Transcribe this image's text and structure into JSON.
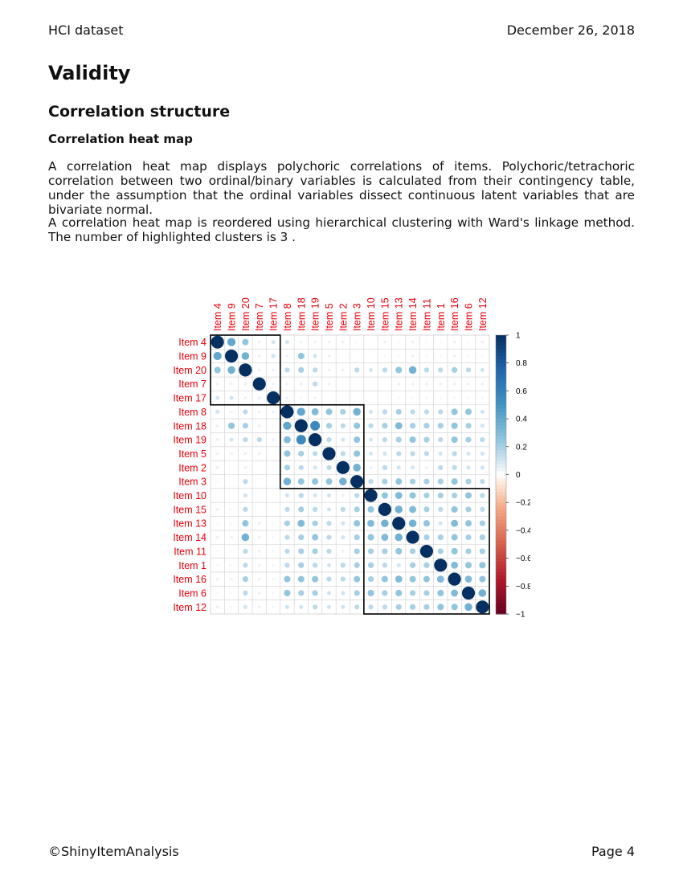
{
  "header": {
    "left": "HCI dataset",
    "right": "December 26, 2018"
  },
  "section": {
    "title": "Validity"
  },
  "subsection": {
    "title": "Correlation structure"
  },
  "subsubsection": {
    "title": "Correlation heat map"
  },
  "paragraphs": [
    "A correlation heat map displays polychoric correlations of items. Polychoric/tetrachoric correlation between two ordinal/binary variables is calculated from their contingency table, under the assumption that the ordinal variables dissect continuous latent variables that are bivariate normal.",
    "A correlation heat map is reordered using hierarchical clustering with Ward's linkage method. The number of highlighted clusters is 3 ."
  ],
  "footer": {
    "left": "©ShinyItemAnalysis",
    "right": "Page 4"
  },
  "chart_data": {
    "type": "heatmap",
    "items": [
      "Item 4",
      "Item 9",
      "Item 20",
      "Item 7",
      "Item 17",
      "Item 8",
      "Item 18",
      "Item 19",
      "Item 5",
      "Item 2",
      "Item 3",
      "Item 10",
      "Item 15",
      "Item 13",
      "Item 14",
      "Item 11",
      "Item 1",
      "Item 16",
      "Item 6",
      "Item 12"
    ],
    "clusters": [
      [
        1,
        5
      ],
      [
        6,
        11
      ],
      [
        12,
        20
      ]
    ],
    "colorbar_ticks": [
      "1",
      "0.8",
      "0.6",
      "0.4",
      "0.2",
      "0",
      "−0.2",
      "−0.4",
      "−0.6",
      "−0.8",
      "−1"
    ],
    "colorbar_range": [
      -1,
      1
    ],
    "label_color": "#e8000b",
    "matrix": [
      [
        1.0,
        0.4,
        0.25,
        0.05,
        0.1,
        0.1,
        0.05,
        0.05,
        0.05,
        0.05,
        0.03,
        0.0,
        0.05,
        0.03,
        0.05,
        0.03,
        0.03,
        0.05,
        0.03,
        0.05
      ],
      [
        0.4,
        1.0,
        0.35,
        0.05,
        0.1,
        0.05,
        0.25,
        0.1,
        0.05,
        0.0,
        0.0,
        0.0,
        0.03,
        0.03,
        0.05,
        0.03,
        0.03,
        0.05,
        0.03,
        0.03
      ],
      [
        0.25,
        0.35,
        1.0,
        0.05,
        0.05,
        0.15,
        0.2,
        0.15,
        0.05,
        0.05,
        0.15,
        0.1,
        0.15,
        0.25,
        0.35,
        0.15,
        0.15,
        0.2,
        0.15,
        0.1
      ],
      [
        0.05,
        0.05,
        0.05,
        1.0,
        0.05,
        0.05,
        0.05,
        0.15,
        0.05,
        0.0,
        0.0,
        0.0,
        0.0,
        0.05,
        0.05,
        0.05,
        0.05,
        0.05,
        0.05,
        0.05
      ],
      [
        0.1,
        0.1,
        0.05,
        0.05,
        1.0,
        0.05,
        0.03,
        0.05,
        0.0,
        0.0,
        0.0,
        0.0,
        0.0,
        0.03,
        0.03,
        0.03,
        0.03,
        0.03,
        0.03,
        0.03
      ],
      [
        0.1,
        0.05,
        0.15,
        0.05,
        0.05,
        1.0,
        0.4,
        0.3,
        0.25,
        0.2,
        0.35,
        0.1,
        0.15,
        0.2,
        0.15,
        0.15,
        0.15,
        0.25,
        0.25,
        0.1
      ],
      [
        0.05,
        0.25,
        0.2,
        0.05,
        0.03,
        0.4,
        1.0,
        0.55,
        0.2,
        0.15,
        0.25,
        0.15,
        0.2,
        0.3,
        0.2,
        0.2,
        0.2,
        0.25,
        0.2,
        0.1
      ],
      [
        0.05,
        0.1,
        0.15,
        0.15,
        0.05,
        0.3,
        0.55,
        1.0,
        0.15,
        0.1,
        0.25,
        0.1,
        0.15,
        0.2,
        0.25,
        0.2,
        0.15,
        0.25,
        0.2,
        0.15
      ],
      [
        0.05,
        0.05,
        0.05,
        0.05,
        0.0,
        0.25,
        0.2,
        0.15,
        1.0,
        0.15,
        0.25,
        0.1,
        0.1,
        0.15,
        0.15,
        0.15,
        0.1,
        0.15,
        0.1,
        0.1
      ],
      [
        0.05,
        0.0,
        0.05,
        0.0,
        0.0,
        0.2,
        0.15,
        0.1,
        0.15,
        1.0,
        0.35,
        0.05,
        0.15,
        0.1,
        0.1,
        0.05,
        0.15,
        0.15,
        0.1,
        0.1
      ],
      [
        0.03,
        0.0,
        0.15,
        0.0,
        0.0,
        0.35,
        0.25,
        0.25,
        0.25,
        0.35,
        1.0,
        0.15,
        0.2,
        0.25,
        0.2,
        0.2,
        0.2,
        0.25,
        0.2,
        0.15
      ],
      [
        0.0,
        0.0,
        0.1,
        0.0,
        0.0,
        0.1,
        0.15,
        0.1,
        0.1,
        0.05,
        0.15,
        1.0,
        0.25,
        0.3,
        0.25,
        0.2,
        0.2,
        0.2,
        0.25,
        0.15
      ],
      [
        0.05,
        0.03,
        0.15,
        0.0,
        0.0,
        0.15,
        0.2,
        0.15,
        0.1,
        0.15,
        0.2,
        0.25,
        1.0,
        0.35,
        0.3,
        0.2,
        0.15,
        0.25,
        0.2,
        0.15
      ],
      [
        0.03,
        0.03,
        0.25,
        0.05,
        0.03,
        0.2,
        0.3,
        0.2,
        0.15,
        0.1,
        0.25,
        0.3,
        0.35,
        1.0,
        0.35,
        0.25,
        0.1,
        0.3,
        0.25,
        0.2
      ],
      [
        0.05,
        0.05,
        0.35,
        0.05,
        0.03,
        0.15,
        0.2,
        0.25,
        0.15,
        0.1,
        0.2,
        0.25,
        0.3,
        0.35,
        1.0,
        0.2,
        0.2,
        0.25,
        0.2,
        0.2
      ],
      [
        0.03,
        0.03,
        0.15,
        0.05,
        0.03,
        0.15,
        0.2,
        0.2,
        0.15,
        0.05,
        0.2,
        0.2,
        0.2,
        0.25,
        0.2,
        1.0,
        0.2,
        0.25,
        0.2,
        0.2
      ],
      [
        0.03,
        0.03,
        0.15,
        0.05,
        0.03,
        0.15,
        0.2,
        0.15,
        0.1,
        0.15,
        0.2,
        0.2,
        0.15,
        0.1,
        0.2,
        0.2,
        1.0,
        0.3,
        0.25,
        0.25
      ],
      [
        0.05,
        0.05,
        0.2,
        0.05,
        0.03,
        0.25,
        0.25,
        0.25,
        0.15,
        0.15,
        0.25,
        0.2,
        0.25,
        0.3,
        0.25,
        0.25,
        0.3,
        1.0,
        0.3,
        0.25
      ],
      [
        0.03,
        0.03,
        0.15,
        0.05,
        0.03,
        0.25,
        0.2,
        0.2,
        0.1,
        0.1,
        0.2,
        0.25,
        0.2,
        0.25,
        0.2,
        0.2,
        0.25,
        0.3,
        1.0,
        0.35
      ],
      [
        0.05,
        0.03,
        0.1,
        0.05,
        0.03,
        0.1,
        0.1,
        0.15,
        0.1,
        0.1,
        0.15,
        0.15,
        0.15,
        0.2,
        0.2,
        0.2,
        0.25,
        0.25,
        0.35,
        1.0
      ]
    ]
  }
}
